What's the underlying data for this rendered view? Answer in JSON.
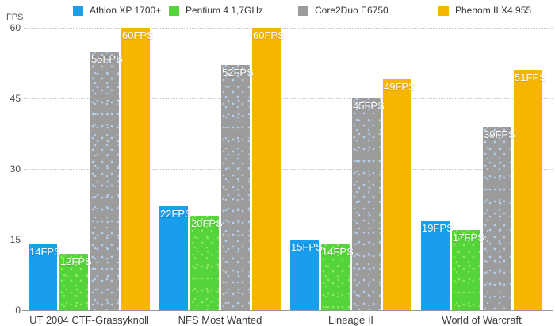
{
  "chart_data": {
    "type": "bar",
    "title": "",
    "xlabel": "",
    "ylabel": "FPS",
    "ylim": [
      0,
      60
    ],
    "yticks": [
      0,
      15,
      30,
      45,
      60
    ],
    "grid": "horizontal-dotted",
    "legend_position": "top",
    "value_label_suffix": "FPS",
    "categories": [
      "UT 2004 CTF-Grassyknoll",
      "NFS Most Wanted",
      "Lineage II",
      "World of Warcraft"
    ],
    "series": [
      {
        "name": "Athlon XP 1700+",
        "color": "#189EEB",
        "textured": false,
        "values": [
          14,
          22,
          15,
          19
        ],
        "labels": [
          "14FPS",
          "22FPS",
          "15FPS",
          "19FPS"
        ]
      },
      {
        "name": "Pentium 4 1,7GHz",
        "color": "#55D33A",
        "dot_color": "#8FE768",
        "textured": true,
        "values": [
          12,
          20,
          14,
          17
        ],
        "labels": [
          "12FPS",
          "20FPS",
          "14FPS",
          "17FPS"
        ]
      },
      {
        "name": "Core2Duo E6750",
        "color": "#9C9C9C",
        "dot_color": "#B3CEEF",
        "textured": true,
        "values": [
          55,
          52,
          45,
          39
        ],
        "labels": [
          "55FPS",
          "52FPS",
          "45FPS",
          "39FPS"
        ]
      },
      {
        "name": "Phenom II X4 955",
        "color": "#F5B501",
        "textured": false,
        "values": [
          60,
          60,
          49,
          51
        ],
        "labels": [
          "60FPS",
          "60FPS",
          "49FPS",
          "51FPS"
        ]
      }
    ]
  }
}
